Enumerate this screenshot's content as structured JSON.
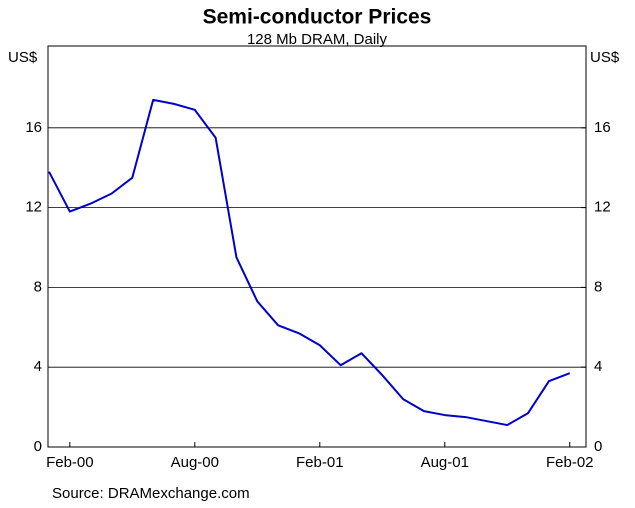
{
  "chart_data": {
    "type": "line",
    "title": "Semi-conductor Prices",
    "subtitle": "128 Mb DRAM, Daily",
    "y_label": "US$",
    "y2_label": "US$",
    "source": "Source:  DRAMexchange.com",
    "x": [
      "2000-01",
      "2000-02",
      "2000-03",
      "2000-04",
      "2000-05",
      "2000-06",
      "2000-07",
      "2000-08",
      "2000-09",
      "2000-10",
      "2000-11",
      "2000-12",
      "2001-01",
      "2001-02",
      "2001-03",
      "2001-04",
      "2001-05",
      "2001-06",
      "2001-07",
      "2001-08",
      "2001-09",
      "2001-10",
      "2001-11",
      "2001-12",
      "2002-01",
      "2002-02"
    ],
    "xticks": [
      {
        "value": "2000-02",
        "label": "Feb-00"
      },
      {
        "value": "2000-08",
        "label": "Aug-00"
      },
      {
        "value": "2001-02",
        "label": "Feb-01"
      },
      {
        "value": "2001-08",
        "label": "Aug-01"
      },
      {
        "value": "2002-02",
        "label": "Feb-02"
      }
    ],
    "series": [
      {
        "name": "128 Mb DRAM",
        "color": "#0000cc",
        "values": [
          13.8,
          11.8,
          12.2,
          12.7,
          13.5,
          17.4,
          17.2,
          16.9,
          15.5,
          9.5,
          7.3,
          6.1,
          5.7,
          5.1,
          4.1,
          4.7,
          3.6,
          2.4,
          1.8,
          1.6,
          1.5,
          1.3,
          1.1,
          1.7,
          3.3,
          3.7
        ]
      }
    ],
    "ylim": [
      0,
      20
    ],
    "yticks": [
      0,
      4,
      8,
      12,
      16
    ],
    "y2lim": [
      0,
      20
    ],
    "y2ticks": [
      0,
      4,
      8,
      12,
      16
    ],
    "grid": true
  }
}
